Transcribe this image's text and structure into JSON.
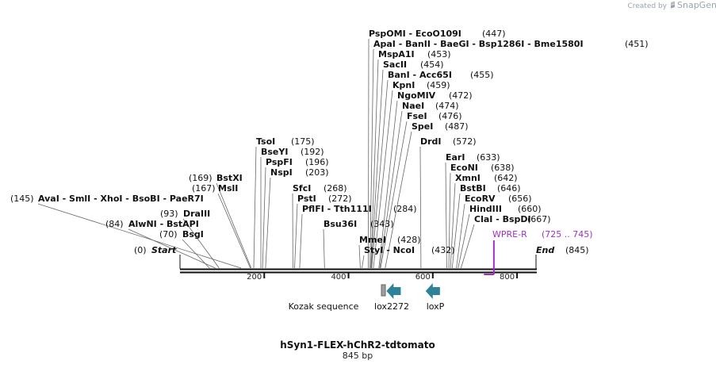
{
  "credit": {
    "prefix": "Created by",
    "brand": "SnapGene"
  },
  "title": "hSyn1-FLEX-hChR2-tdtomato",
  "subtitle": "845 bp",
  "backbone": {
    "length": 845,
    "ticks": [
      200,
      400,
      600,
      800
    ]
  },
  "ends": {
    "start": {
      "pos": "(0)",
      "name": "Start"
    },
    "end": {
      "name": "End",
      "pos": "(845)"
    }
  },
  "primer": {
    "name": "WPRE-R",
    "range": "(725 .. 745)",
    "start": 725,
    "end": 745,
    "color": "#a030c8"
  },
  "features": [
    {
      "name": "Kozak sequence",
      "type": "box",
      "start": 431,
      "end": 441,
      "color": "#9e9e9e"
    },
    {
      "name": "lox2272",
      "type": "arrow-left",
      "start": 490,
      "end": 524,
      "color": "#2e8297"
    },
    {
      "name": "loxP",
      "type": "arrow-left",
      "start": 583,
      "end": 617,
      "color": "#2e8297"
    }
  ],
  "sites": [
    {
      "pos": 447,
      "names": [
        "PspOMI",
        "EcoO109I"
      ],
      "num": "(447)"
    },
    {
      "pos": 451,
      "names": [
        "ApaI",
        "BanII",
        "BaeGI",
        "Bsp1286I",
        "Bme1580I"
      ],
      "num": "(451)"
    },
    {
      "pos": 453,
      "names": [
        "MspA1I"
      ],
      "num": "(453)"
    },
    {
      "pos": 454,
      "names": [
        "SacII"
      ],
      "num": "(454)"
    },
    {
      "pos": 455,
      "names": [
        "BanI",
        "Acc65I"
      ],
      "num": "(455)"
    },
    {
      "pos": 459,
      "names": [
        "KpnI"
      ],
      "num": "(459)"
    },
    {
      "pos": 472,
      "names": [
        "NgoMIV"
      ],
      "num": "(472)"
    },
    {
      "pos": 474,
      "names": [
        "NaeI"
      ],
      "num": "(474)"
    },
    {
      "pos": 476,
      "names": [
        "FseI"
      ],
      "num": "(476)"
    },
    {
      "pos": 487,
      "names": [
        "SpeI"
      ],
      "num": "(487)"
    },
    {
      "pos": 572,
      "names": [
        "DrdI"
      ],
      "num": "(572)"
    },
    {
      "pos": 175,
      "names": [
        "TsoI"
      ],
      "num": "(175)"
    },
    {
      "pos": 192,
      "names": [
        "BseYI"
      ],
      "num": "(192)"
    },
    {
      "pos": 196,
      "names": [
        "PspFI"
      ],
      "num": "(196)"
    },
    {
      "pos": 203,
      "names": [
        "NspI"
      ],
      "num": "(203)"
    },
    {
      "pos": 169,
      "names": [
        "BstXI"
      ],
      "num": "(169)"
    },
    {
      "pos": 167,
      "names": [
        "MslI"
      ],
      "num": "(167)"
    },
    {
      "pos": 145,
      "names": [
        "AvaI",
        "SmlI",
        "XhoI",
        "BsoBI",
        "PaeR7I"
      ],
      "num": "(145)"
    },
    {
      "pos": 93,
      "names": [
        "DraIII"
      ],
      "num": "(93)"
    },
    {
      "pos": 84,
      "names": [
        "AlwNI",
        "BstAPI"
      ],
      "num": "(84)"
    },
    {
      "pos": 70,
      "names": [
        "BsgI"
      ],
      "num": "(70)"
    },
    {
      "pos": 268,
      "names": [
        "SfcI"
      ],
      "num": "(268)"
    },
    {
      "pos": 272,
      "names": [
        "PstI"
      ],
      "num": "(272)"
    },
    {
      "pos": 284,
      "names": [
        "PflFI",
        "Tth111I"
      ],
      "num": "(284)"
    },
    {
      "pos": 343,
      "names": [
        "Bsu36I"
      ],
      "num": "(343)"
    },
    {
      "pos": 428,
      "names": [
        "MmeI"
      ],
      "num": "(428)"
    },
    {
      "pos": 432,
      "names": [
        "StyI",
        "NcoI"
      ],
      "num": "(432)"
    },
    {
      "pos": 633,
      "names": [
        "EarI"
      ],
      "num": "(633)"
    },
    {
      "pos": 638,
      "names": [
        "EcoNI"
      ],
      "num": "(638)"
    },
    {
      "pos": 642,
      "names": [
        "XmnI"
      ],
      "num": "(642)"
    },
    {
      "pos": 646,
      "names": [
        "BstBI"
      ],
      "num": "(646)"
    },
    {
      "pos": 656,
      "names": [
        "EcoRV"
      ],
      "num": "(656)"
    },
    {
      "pos": 660,
      "names": [
        "HindIII"
      ],
      "num": "(660)"
    },
    {
      "pos": 667,
      "names": [
        "ClaI",
        "BspDI"
      ],
      "num": "(667)"
    }
  ]
}
